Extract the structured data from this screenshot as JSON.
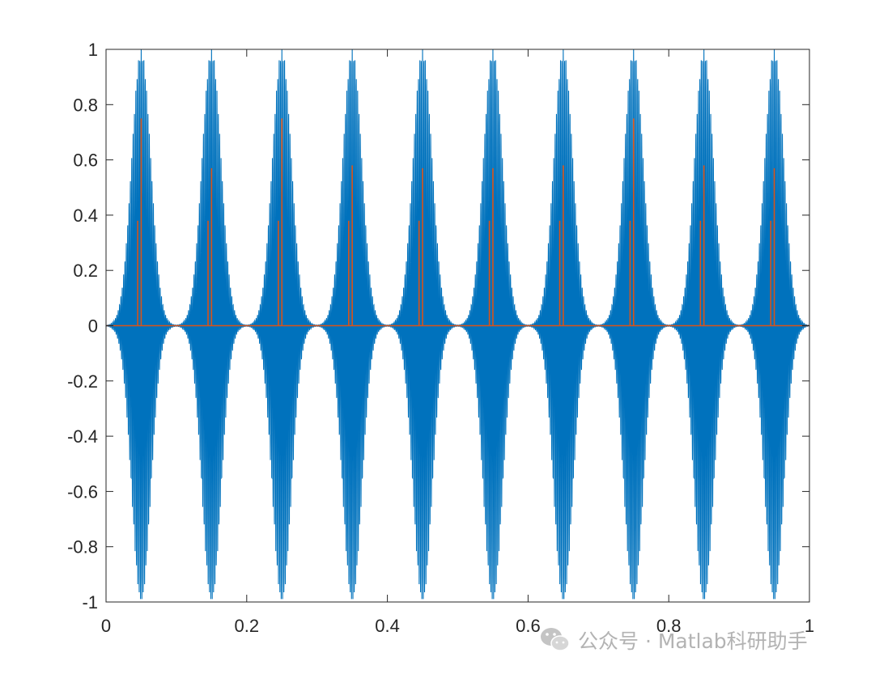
{
  "watermark": {
    "text": "公众号 · Matlab科研助手",
    "icon": "wechat-icon"
  },
  "chart_data": {
    "type": "line",
    "xlim": [
      0,
      1
    ],
    "ylim": [
      -1,
      1
    ],
    "x_ticks": [
      "0",
      "0.2",
      "0.4",
      "0.6",
      "0.8",
      "1"
    ],
    "x_tick_values": [
      0,
      0.2,
      0.4,
      0.6,
      0.8,
      1
    ],
    "y_ticks": [
      "-1",
      "-0.8",
      "-0.6",
      "-0.4",
      "-0.2",
      "0",
      "0.2",
      "0.4",
      "0.6",
      "0.8",
      "1"
    ],
    "y_tick_values": [
      -1,
      -0.8,
      -0.6,
      -0.4,
      -0.2,
      0,
      0.2,
      0.4,
      0.6,
      0.8,
      1
    ],
    "grid": false,
    "colors": {
      "series1": "#0072BD",
      "series2": "#D95319",
      "axes": "#262626"
    },
    "series": [
      {
        "key": "series1",
        "style": "oscillating pulses",
        "pulse_centers": [
          0.05,
          0.15,
          0.25,
          0.35,
          0.45,
          0.55,
          0.65,
          0.75,
          0.85,
          0.95
        ],
        "peak_amplitude": 1.0,
        "pulse_half_width": 0.035
      },
      {
        "key": "series2",
        "style": "impulses",
        "baseline": 0,
        "impulses": [
          {
            "x": 0.045,
            "y": 0.38
          },
          {
            "x": 0.05,
            "y": 0.75
          },
          {
            "x": 0.145,
            "y": 0.38
          },
          {
            "x": 0.15,
            "y": 0.57
          },
          {
            "x": 0.245,
            "y": 0.38
          },
          {
            "x": 0.25,
            "y": 0.75
          },
          {
            "x": 0.345,
            "y": 0.38
          },
          {
            "x": 0.35,
            "y": 0.58
          },
          {
            "x": 0.445,
            "y": 0.38
          },
          {
            "x": 0.45,
            "y": 0.57
          },
          {
            "x": 0.545,
            "y": 0.38
          },
          {
            "x": 0.55,
            "y": 0.57
          },
          {
            "x": 0.645,
            "y": 0.38
          },
          {
            "x": 0.65,
            "y": 0.58
          },
          {
            "x": 0.745,
            "y": 0.38
          },
          {
            "x": 0.75,
            "y": 0.75
          },
          {
            "x": 0.845,
            "y": 0.38
          },
          {
            "x": 0.85,
            "y": 0.58
          },
          {
            "x": 0.945,
            "y": 0.38
          },
          {
            "x": 0.95,
            "y": 0.57
          }
        ]
      }
    ]
  }
}
